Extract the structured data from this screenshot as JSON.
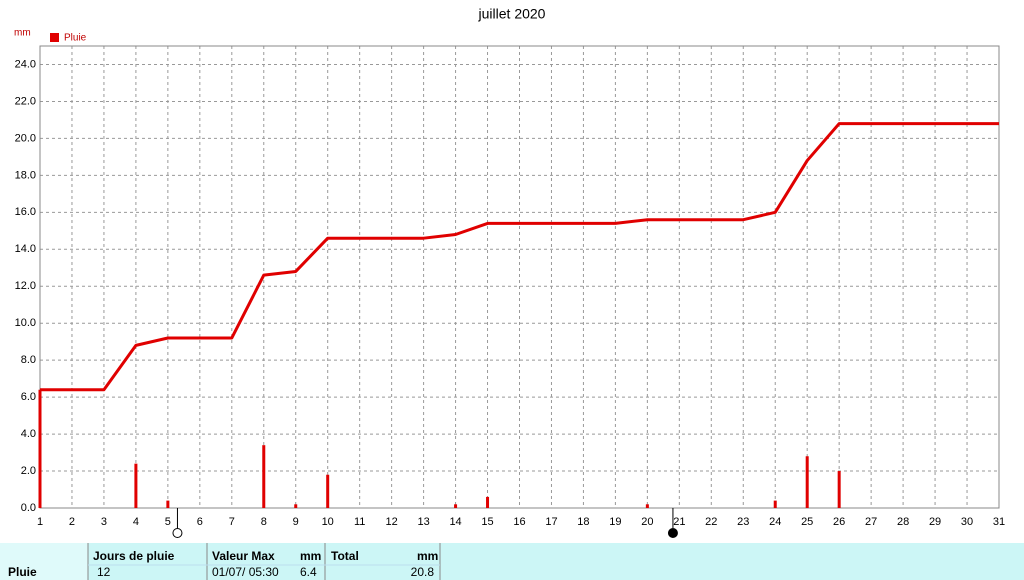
{
  "chart_data": {
    "type": "combo",
    "title": "juillet 2020",
    "y_label": "mm",
    "xlim": [
      1,
      31
    ],
    "xticks": [
      1,
      2,
      3,
      4,
      5,
      6,
      7,
      8,
      9,
      10,
      11,
      12,
      13,
      14,
      15,
      16,
      17,
      18,
      19,
      20,
      21,
      22,
      23,
      24,
      25,
      26,
      27,
      28,
      29,
      30,
      31
    ],
    "ylim": [
      0,
      25
    ],
    "yticks": [
      {
        "value": 0,
        "label": "0.0"
      },
      {
        "value": 2,
        "label": "2.0"
      },
      {
        "value": 4,
        "label": "4.0"
      },
      {
        "value": 6,
        "label": "6.0"
      },
      {
        "value": 8,
        "label": "8.0"
      },
      {
        "value": 10,
        "label": "10.0"
      },
      {
        "value": 12,
        "label": "12.0"
      },
      {
        "value": 14,
        "label": "14.0"
      },
      {
        "value": 16,
        "label": "16.0"
      },
      {
        "value": 18,
        "label": "18.0"
      },
      {
        "value": 20,
        "label": "20.0"
      },
      {
        "value": 22,
        "label": "22.0"
      },
      {
        "value": 24,
        "label": "24.0"
      }
    ],
    "grid": true,
    "legend": "top-left",
    "series": [
      {
        "name": "Pluie",
        "type": "bar",
        "color": "#e00000",
        "x": [
          1,
          4,
          5,
          8,
          9,
          10,
          14,
          15,
          20,
          24,
          25,
          26
        ],
        "values": [
          6.4,
          2.4,
          0.4,
          3.4,
          0.2,
          1.8,
          0.2,
          0.6,
          0.2,
          0.4,
          2.8,
          2.0
        ]
      },
      {
        "type": "line",
        "color": "#e00000",
        "x": [
          1,
          3,
          4,
          5,
          7,
          8,
          9,
          10,
          13,
          14,
          15,
          19,
          20,
          23,
          24,
          25,
          26,
          31
        ],
        "values": [
          6.4,
          6.4,
          8.8,
          9.2,
          9.2,
          12.6,
          12.8,
          14.6,
          14.6,
          14.8,
          15.4,
          15.4,
          15.6,
          15.6,
          16.0,
          18.8,
          20.8,
          20.8
        ]
      }
    ],
    "moon_x": [
      5.3,
      20.8
    ]
  },
  "table": {
    "row_label": "Pluie",
    "columns": [
      {
        "header": "Jours de pluie",
        "value": 12
      },
      {
        "header": "Valeur Max",
        "unit": "mm",
        "date": "01/07/ 05:30",
        "value": 6.4
      },
      {
        "header": "Total",
        "unit": "mm",
        "value": 20.8
      }
    ]
  }
}
